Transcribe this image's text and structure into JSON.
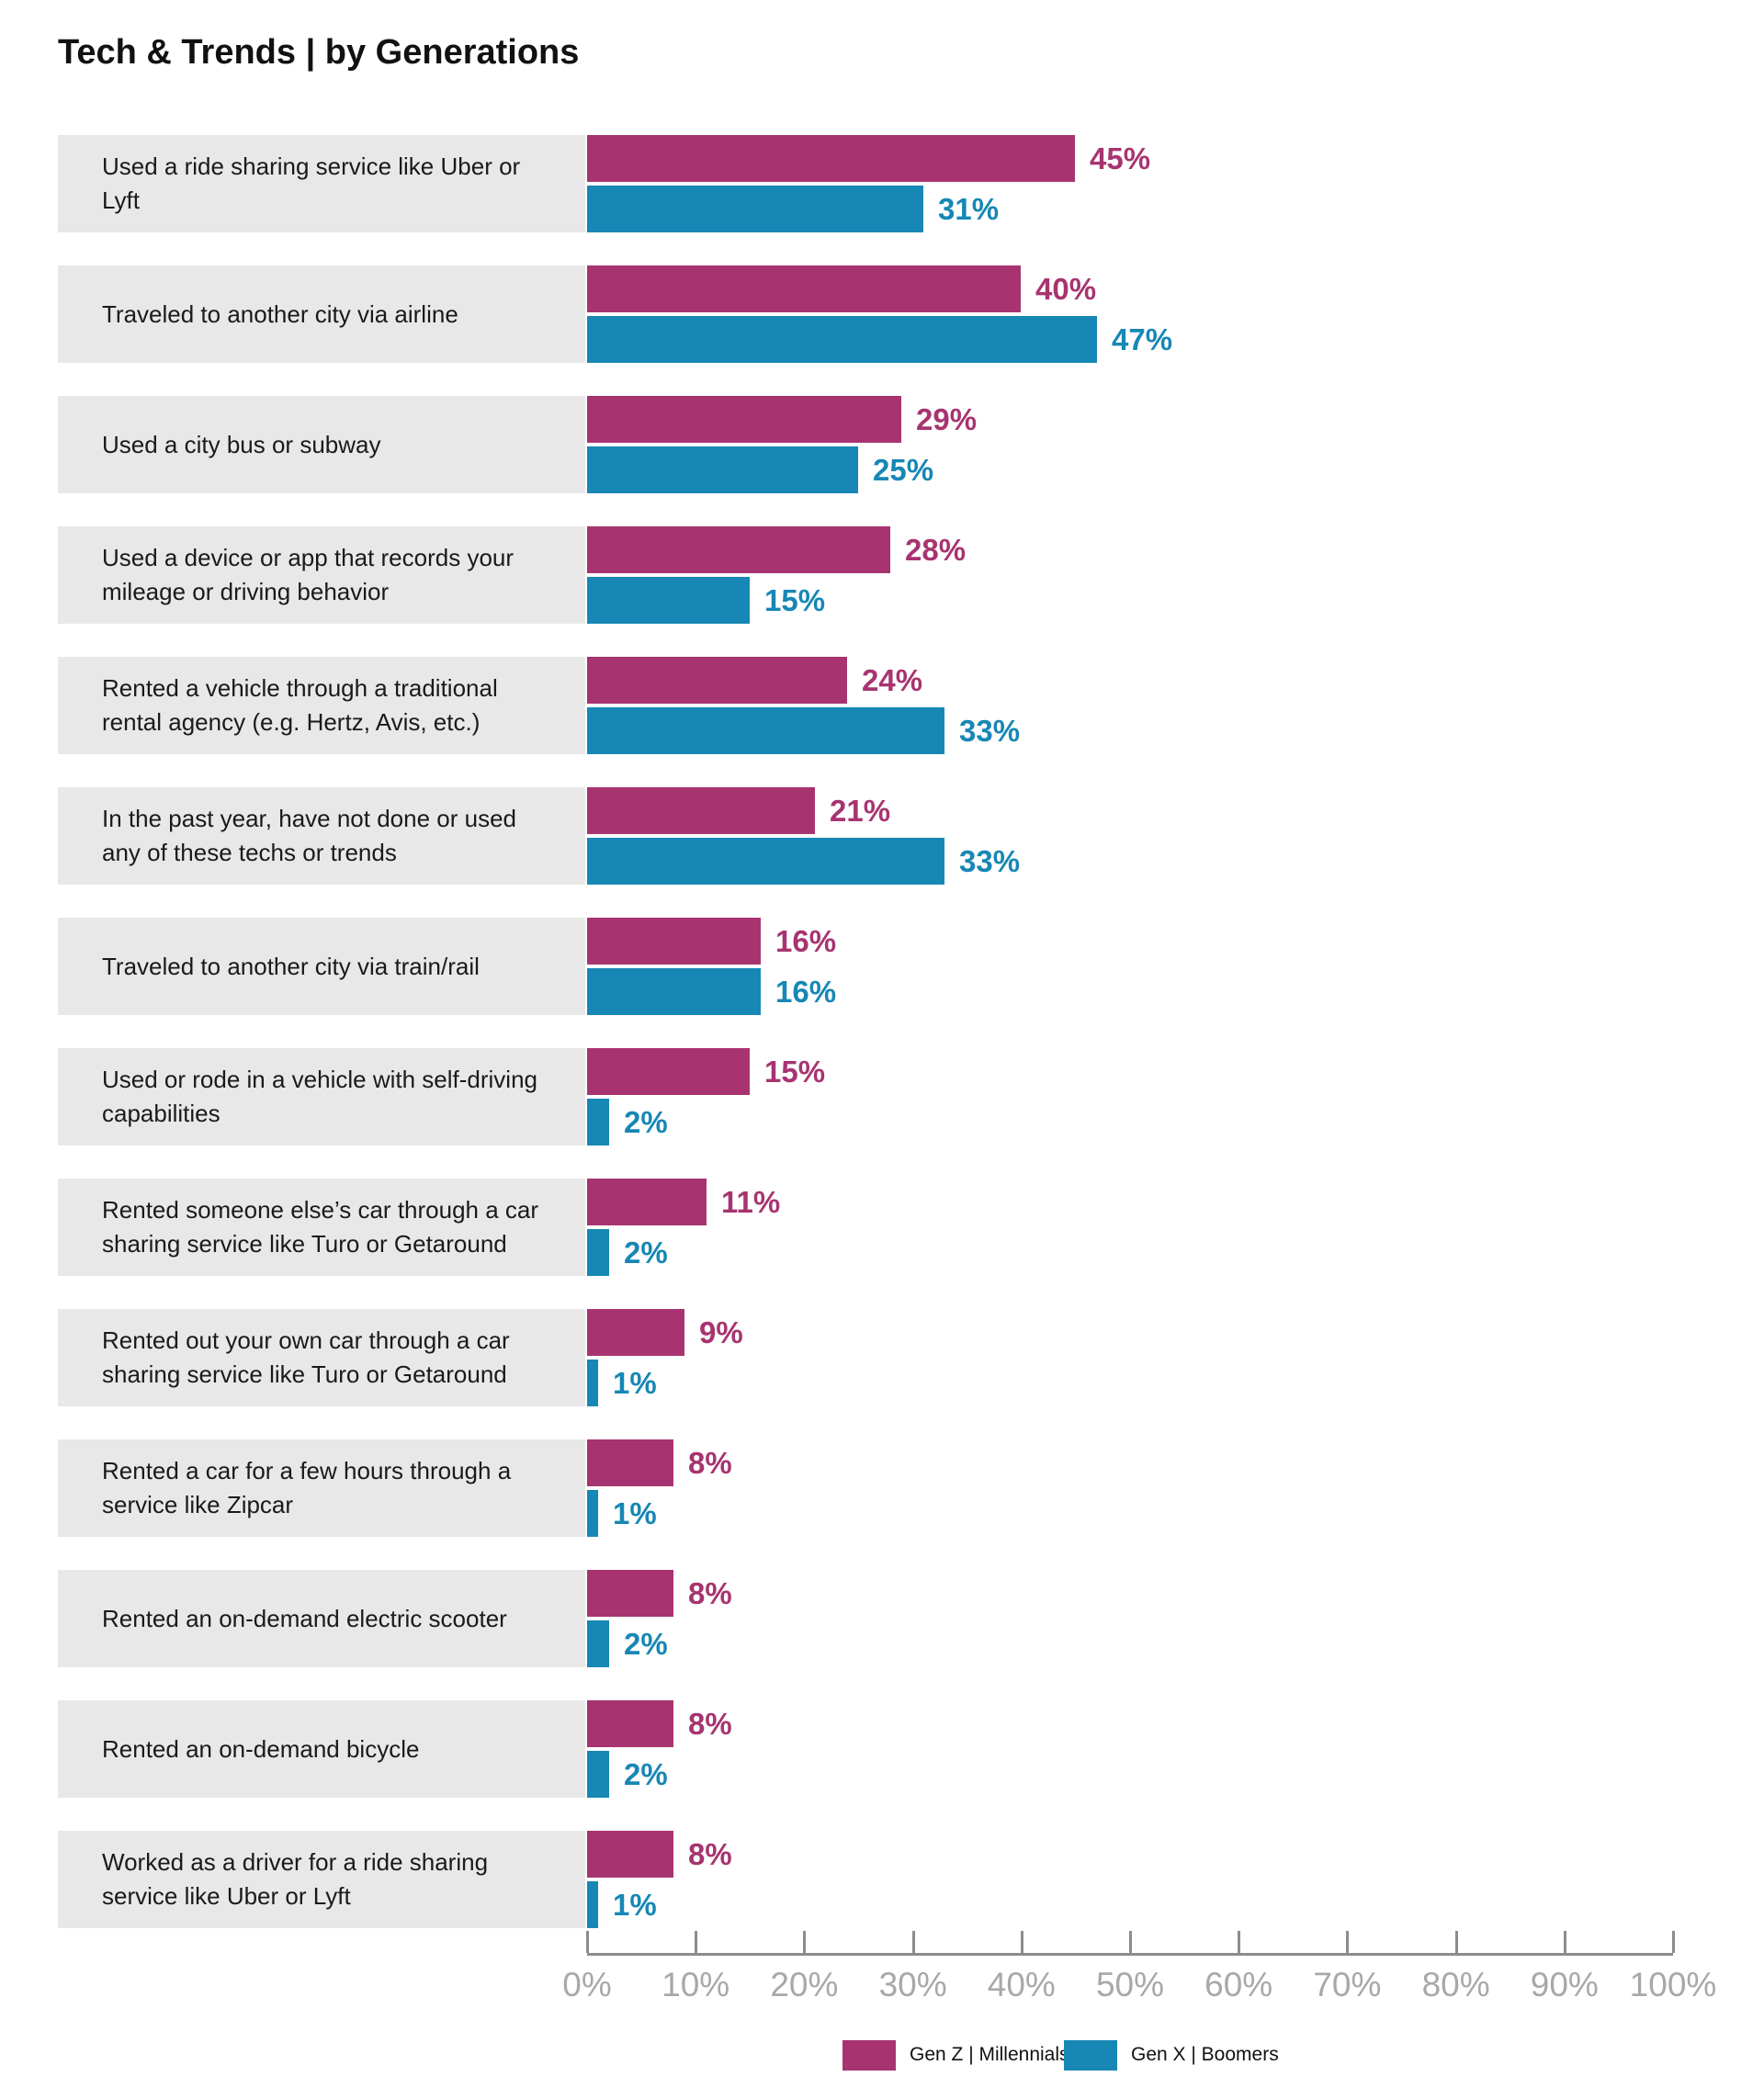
{
  "title": "Tech & Trends | by Generations",
  "colors": {
    "gen_z_millennials": "#a73470",
    "gen_x_boomers": "#1787b5",
    "label_box_background": "#e8e8e8",
    "axis_line": "#8c8c8c",
    "tick_label_text": "#a8a8a8",
    "title_text": "#111111"
  },
  "chart_data": {
    "type": "bar",
    "orientation": "horizontal",
    "title": "Tech & Trends | by Generations",
    "categories": [
      "Used a ride sharing service like Uber or Lyft",
      "Traveled to another city via airline",
      "Used a city bus or subway",
      "Used a device or app that records your mileage or driving behavior",
      "Rented a vehicle through a traditional rental agency (e.g. Hertz, Avis, etc.)",
      "In the past year, have not done or used any of these techs or trends",
      "Traveled to another city via train/rail",
      "Used or rode in a vehicle with self-driving capabilities",
      "Rented someone else’s car through a car sharing service like Turo or Getaround",
      "Rented out your own car through a car sharing service like Turo or Getaround",
      "Rented a car for a few hours through a service like Zipcar",
      "Rented an on-demand electric scooter",
      "Rented an on-demand bicycle",
      "Worked as a driver for a ride sharing service like Uber or Lyft"
    ],
    "series": [
      {
        "name": "Gen Z | Millennials",
        "color": "#a73470",
        "values": [
          45,
          40,
          29,
          28,
          24,
          21,
          16,
          15,
          11,
          9,
          8,
          8,
          8,
          8
        ]
      },
      {
        "name": "Gen X | Boomers",
        "color": "#1787b5",
        "values": [
          31,
          47,
          25,
          15,
          33,
          33,
          16,
          2,
          2,
          1,
          1,
          2,
          2,
          1
        ]
      }
    ],
    "value_suffix": "%",
    "data_labels": true,
    "xlabel": "",
    "ylabel": "",
    "xlim": [
      0,
      100
    ],
    "x_ticks": [
      "0%",
      "10%",
      "20%",
      "30%",
      "40%",
      "50%",
      "60%",
      "70%",
      "80%",
      "90%",
      "100%"
    ],
    "grid": false,
    "legend_position": "bottom"
  }
}
